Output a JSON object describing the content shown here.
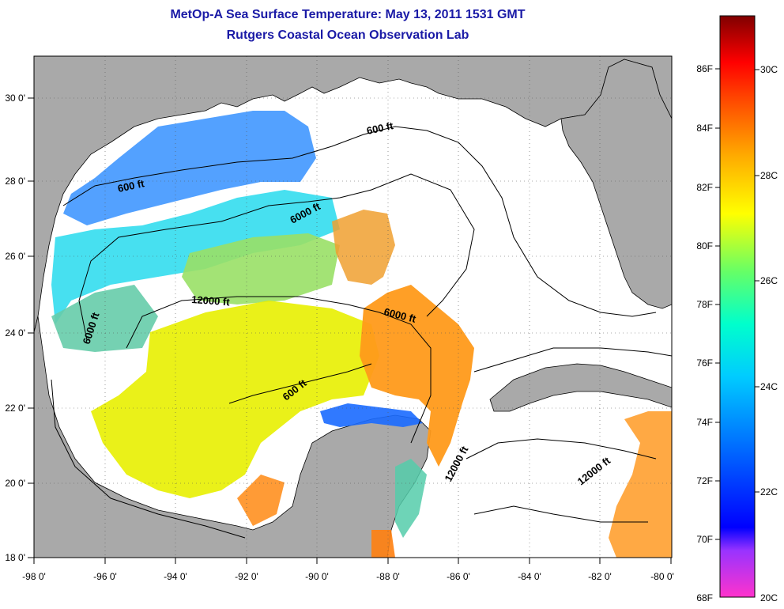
{
  "title": "MetOp-A Sea Surface Temperature:  May 13, 2011 1531 GMT",
  "subtitle": "Rutgers Coastal Ocean Observation Lab",
  "x_ticks": [
    "-98 0'",
    "-96 0'",
    "-94 0'",
    "-92 0'",
    "-90 0'",
    "-88 0'",
    "-86 0'",
    "-84 0'",
    "-82 0'",
    "-80 0'"
  ],
  "y_ticks": [
    "30 0'",
    "28 0'",
    "26 0'",
    "24 0'",
    "22 0'",
    "20 0'",
    "18 0'"
  ],
  "contour_labels": [
    "600 ft",
    "600 ft",
    "6000 ft",
    "12000 ft",
    "6000 ft",
    "6000 ft",
    "600 ft",
    "12000 ft",
    "12000 ft"
  ],
  "colorbar": {
    "f_labels": [
      "86F",
      "84F",
      "82F",
      "80F",
      "78F",
      "76F",
      "74F",
      "72F",
      "70F",
      "68F"
    ],
    "c_labels": [
      "30C",
      "28C",
      "26C",
      "24C",
      "22C",
      "20C"
    ]
  },
  "colors": {
    "land": "#a9a9a9",
    "title": "#1a1aa6"
  }
}
